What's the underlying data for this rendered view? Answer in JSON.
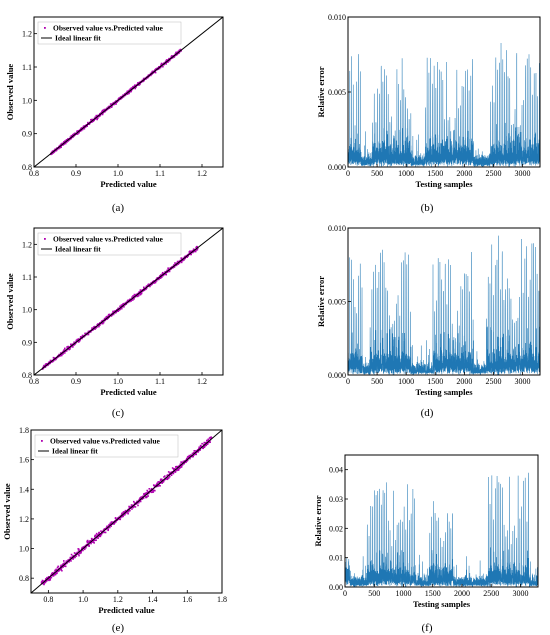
{
  "colors": {
    "scatter": "#b000b0",
    "error_line": "#1f77b4",
    "ideal_line": "#000000",
    "frame": "#000000"
  },
  "chart_data": [
    {
      "id": "a",
      "type": "scatter",
      "panel_label": "(a)",
      "xlabel": "Predicted value",
      "ylabel": "Observed value",
      "xlim": [
        0.8,
        1.25
      ],
      "ylim": [
        0.8,
        1.25
      ],
      "xticks": [
        0.8,
        0.9,
        1.0,
        1.1,
        1.2
      ],
      "yticks": [
        0.8,
        0.9,
        1.0,
        1.1,
        1.2
      ],
      "xtick_labels": [
        "0.8",
        "0.9",
        "1.0",
        "1.1",
        "1.2"
      ],
      "ytick_labels": [
        "0.8",
        "0.9",
        "1.0",
        "1.1",
        "1.2"
      ],
      "legend_position": "top-left",
      "series": [
        {
          "name": "Observed value vs.Predicted value",
          "kind": "scatter",
          "x_range": [
            0.84,
            1.15
          ],
          "scatter_width": 0.004
        },
        {
          "name": "Ideal linear fit",
          "kind": "line",
          "x": [
            0.8,
            1.25
          ],
          "y": [
            0.8,
            1.25
          ]
        }
      ]
    },
    {
      "id": "b",
      "type": "line",
      "panel_label": "(b)",
      "xlabel": "Testing samples",
      "ylabel": "Relative error",
      "xlim": [
        0,
        3300
      ],
      "ylim": [
        0,
        0.01
      ],
      "xticks": [
        0,
        500,
        1000,
        1500,
        2000,
        2500,
        3000
      ],
      "yticks": [
        0,
        0.005,
        0.01
      ],
      "xtick_labels": [
        "0",
        "500",
        "1000",
        "1500",
        "2000",
        "2500",
        "3000"
      ],
      "ytick_labels": [
        "0.000",
        "0.005",
        "0.010"
      ],
      "n_samples": 3300,
      "groups": [
        {
          "start": 0,
          "end": 220,
          "peak": 0.0076
        },
        {
          "start": 420,
          "end": 1080,
          "peak": 0.0074
        },
        {
          "start": 1330,
          "end": 2160,
          "peak": 0.0073
        },
        {
          "start": 2450,
          "end": 3300,
          "peak": 0.0084
        }
      ]
    },
    {
      "id": "c",
      "type": "scatter",
      "panel_label": "(c)",
      "xlabel": "Predicted value",
      "ylabel": "Observed value",
      "xlim": [
        0.8,
        1.25
      ],
      "ylim": [
        0.8,
        1.25
      ],
      "xticks": [
        0.8,
        0.9,
        1.0,
        1.1,
        1.2
      ],
      "yticks": [
        0.8,
        0.9,
        1.0,
        1.1,
        1.2
      ],
      "xtick_labels": [
        "0.8",
        "0.9",
        "1.0",
        "1.1",
        "1.2"
      ],
      "ytick_labels": [
        "0.8",
        "0.9",
        "1.0",
        "1.1",
        "1.2"
      ],
      "legend_position": "top-left",
      "series": [
        {
          "name": "Observed value vs.Predicted value",
          "kind": "scatter",
          "x_range": [
            0.82,
            1.19
          ],
          "scatter_width": 0.005
        },
        {
          "name": "Ideal linear fit",
          "kind": "line",
          "x": [
            0.8,
            1.25
          ],
          "y": [
            0.8,
            1.25
          ]
        }
      ]
    },
    {
      "id": "d",
      "type": "line",
      "panel_label": "(d)",
      "xlabel": "Testing samples",
      "ylabel": "Relative error",
      "xlim": [
        0,
        3300
      ],
      "ylim": [
        0,
        0.01
      ],
      "xticks": [
        0,
        500,
        1000,
        1500,
        2000,
        2500,
        3000
      ],
      "yticks": [
        0,
        0.005,
        0.01
      ],
      "xtick_labels": [
        "0",
        "500",
        "1000",
        "1500",
        "2000",
        "2500",
        "3000"
      ],
      "ytick_labels": [
        "0.000",
        "0.005",
        "0.010"
      ],
      "n_samples": 3300,
      "groups": [
        {
          "start": 0,
          "end": 250,
          "peak": 0.0084
        },
        {
          "start": 380,
          "end": 1080,
          "peak": 0.009
        },
        {
          "start": 1460,
          "end": 2150,
          "peak": 0.0086
        },
        {
          "start": 2380,
          "end": 3300,
          "peak": 0.0097
        }
      ]
    },
    {
      "id": "e",
      "type": "scatter",
      "panel_label": "(e)",
      "xlabel": "Predicted value",
      "ylabel": "Observed value",
      "xlim": [
        0.7,
        1.8
      ],
      "ylim": [
        0.7,
        1.8
      ],
      "xticks": [
        0.8,
        1.0,
        1.2,
        1.4,
        1.6,
        1.8
      ],
      "yticks": [
        0.8,
        1.0,
        1.2,
        1.4,
        1.6,
        1.8
      ],
      "xtick_labels": [
        "0.8",
        "1.0",
        "1.2",
        "1.4",
        "1.6",
        "1.8"
      ],
      "ytick_labels": [
        "0.8",
        "1.0",
        "1.2",
        "1.4",
        "1.6",
        "1.8"
      ],
      "legend_position": "top-left",
      "series": [
        {
          "name": "Observed value vs.Predicted value",
          "kind": "scatter",
          "x_range": [
            0.76,
            1.74
          ],
          "scatter_width": 0.018
        },
        {
          "name": "Ideal linear fit",
          "kind": "line",
          "x": [
            0.7,
            1.8
          ],
          "y": [
            0.7,
            1.8
          ]
        }
      ]
    },
    {
      "id": "f",
      "type": "line",
      "panel_label": "(f)",
      "xlabel": "Testing samples",
      "ylabel": "Relative error",
      "xlim": [
        0,
        3300
      ],
      "ylim": [
        0,
        0.045
      ],
      "xticks": [
        0,
        500,
        1000,
        1500,
        2000,
        2500,
        3000
      ],
      "yticks": [
        0,
        0.01,
        0.02,
        0.03,
        0.04
      ],
      "xtick_labels": [
        "0",
        "500",
        "1000",
        "1500",
        "2000",
        "2500",
        "3000"
      ],
      "ytick_labels": [
        "0.00",
        "0.01",
        "0.02",
        "0.03",
        "0.04"
      ],
      "n_samples": 3300,
      "groups": [
        {
          "start": 0,
          "end": 80,
          "peak": 0.014
        },
        {
          "start": 380,
          "end": 1200,
          "peak": 0.036
        },
        {
          "start": 1450,
          "end": 1850,
          "peak": 0.033
        },
        {
          "start": 2450,
          "end": 3150,
          "peak": 0.039
        }
      ]
    }
  ]
}
